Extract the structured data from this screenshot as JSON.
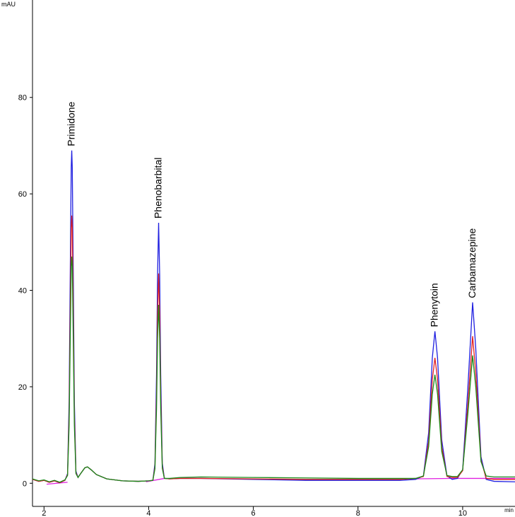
{
  "chart_data": {
    "type": "line",
    "y_label": "mAU",
    "x_label": "min",
    "x": [
      1.78,
      1.9,
      2.0,
      2.1,
      2.2,
      2.3,
      2.4,
      2.45,
      2.48,
      2.5,
      2.52,
      2.53,
      2.54,
      2.56,
      2.58,
      2.61,
      2.65,
      2.7,
      2.78,
      2.83,
      2.9,
      3.0,
      3.2,
      3.5,
      3.8,
      4.0,
      4.08,
      4.12,
      4.15,
      4.17,
      4.19,
      4.21,
      4.23,
      4.26,
      4.3,
      4.4,
      4.6,
      5.0,
      6.0,
      7.0,
      8.0,
      8.8,
      9.1,
      9.25,
      9.35,
      9.42,
      9.47,
      9.52,
      9.6,
      9.7,
      9.8,
      9.9,
      10.0,
      10.1,
      10.19,
      10.25,
      10.35,
      10.45,
      10.6,
      11.0
    ],
    "series": [
      {
        "color": "#2020e0",
        "values": [
          0.8,
          0.4,
          0.6,
          0.2,
          0.5,
          0.1,
          0.6,
          2,
          17,
          42,
          65.5,
          69,
          65.5,
          42,
          17,
          2.5,
          1.2,
          2,
          3.2,
          3.4,
          2.8,
          1.8,
          0.9,
          0.5,
          0.4,
          0.5,
          0.6,
          4.1,
          22.6,
          43.2,
          54,
          43.2,
          22.6,
          4.2,
          1.0,
          0.9,
          1.0,
          1.0,
          0.8,
          0.6,
          0.6,
          0.6,
          0.8,
          1.5,
          10.5,
          26,
          31.5,
          26,
          9,
          1.5,
          0.8,
          1.0,
          2.8,
          20,
          37.5,
          28,
          5.5,
          0.8,
          0.4,
          0.3
        ]
      },
      {
        "color": "#e02020",
        "values": [
          0.8,
          0.4,
          0.6,
          0.2,
          0.5,
          0.1,
          0.6,
          1.8,
          14,
          34,
          53,
          55.5,
          53,
          34,
          14,
          2.2,
          1.2,
          2,
          3.2,
          3.4,
          2.8,
          1.8,
          0.9,
          0.5,
          0.4,
          0.5,
          0.6,
          3.4,
          18,
          35,
          43.5,
          35,
          18,
          3.5,
          1.0,
          0.9,
          1.0,
          1.0,
          0.9,
          0.8,
          0.8,
          0.8,
          1.0,
          1.4,
          8.7,
          21.5,
          26,
          21.5,
          7.5,
          1.4,
          1.2,
          1.2,
          2.6,
          16.5,
          30.5,
          23,
          4.8,
          1.0,
          0.8,
          0.8
        ]
      },
      {
        "color": "#1a8a1a",
        "values": [
          0.9,
          0.5,
          0.7,
          0.3,
          0.6,
          0.2,
          0.7,
          1.6,
          12,
          29,
          45,
          47,
          45,
          29,
          12,
          2,
          1.2,
          2,
          3.2,
          3.4,
          2.8,
          1.8,
          0.9,
          0.5,
          0.4,
          0.5,
          0.6,
          3,
          15.5,
          30,
          37,
          30,
          15.5,
          3.1,
          1.0,
          1.0,
          1.2,
          1.3,
          1.2,
          1.1,
          1.0,
          1.0,
          1.0,
          1.5,
          7.6,
          18.5,
          22.5,
          18.5,
          6.6,
          1.6,
          1.4,
          1.4,
          2.8,
          14.5,
          26.5,
          20,
          4.5,
          1.5,
          1.3,
          1.3
        ]
      },
      {
        "color": "#e020e0",
        "x": [
          2.05,
          2.45,
          2.46,
          3.95,
          4.3,
          4.31,
          9.0,
          9.8,
          11.0
        ],
        "values": [
          -0.2,
          0.2,
          null,
          0.3,
          1.0,
          null,
          0.9,
          1.0,
          1.0
        ]
      }
    ],
    "peaks": [
      {
        "name": "Primidone",
        "time": 2.53
      },
      {
        "name": "Phenobarbital",
        "time": 4.19
      },
      {
        "name": "Phenytoin",
        "time": 9.47
      },
      {
        "name": "Carbamazepine",
        "time": 10.19
      }
    ],
    "xlim": [
      1.78,
      11.0
    ],
    "ylim": [
      -4.8,
      100.2
    ],
    "xticks": [
      2,
      4,
      6,
      8,
      10
    ],
    "yticks": [
      0,
      20,
      40,
      60,
      80
    ]
  }
}
